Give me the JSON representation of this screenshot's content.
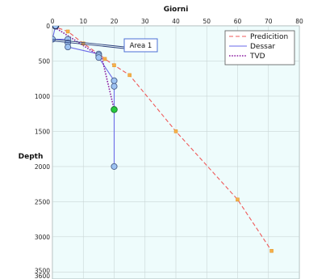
{
  "chart_data": {
    "type": "line",
    "xlabel": "Giorni",
    "ylabel": "Depth",
    "xlim": [
      0,
      80
    ],
    "ylim": [
      0,
      3600
    ],
    "y_inverted": true,
    "x_axis_position": "top",
    "x_ticks": [
      0,
      10,
      20,
      30,
      40,
      50,
      60,
      70,
      80
    ],
    "y_ticks": [
      0,
      500,
      1000,
      1500,
      2000,
      2500,
      3000,
      3500,
      3600
    ],
    "plot_background": "#eefcfc",
    "grid": true,
    "legend": {
      "placement": "top-right",
      "entries": [
        "Predicition",
        "Dessar",
        "TVD"
      ]
    },
    "series": [
      {
        "name": "Predicition",
        "color": "#ef5a5a",
        "line_style": "dashed",
        "marker": "square",
        "marker_fill": "#f6b04a",
        "points": [
          [
            0,
            0
          ],
          [
            5,
            80
          ],
          [
            10,
            250
          ],
          [
            15,
            400
          ],
          [
            17,
            470
          ],
          [
            20,
            560
          ],
          [
            25,
            700
          ],
          [
            40,
            1500
          ],
          [
            60,
            2470
          ],
          [
            71,
            3200
          ]
        ]
      },
      {
        "name": "Dessar",
        "color": "#6a6ae8",
        "line_style": "solid",
        "marker": "circle",
        "marker_fill": "#9dc3f2",
        "points": [
          [
            1,
            0
          ],
          [
            0,
            190
          ],
          [
            5,
            190
          ],
          [
            5,
            240
          ],
          [
            5,
            300
          ],
          [
            15,
            400
          ],
          [
            15,
            420
          ],
          [
            15,
            450
          ],
          [
            20,
            780
          ],
          [
            20,
            860
          ],
          [
            20,
            1190
          ],
          [
            20,
            2000
          ]
        ]
      },
      {
        "name": "TVD",
        "color": "#8a1aa0",
        "line_style": "dotted",
        "points": [
          [
            0,
            0
          ],
          [
            15,
            420
          ],
          [
            16,
            450
          ],
          [
            20,
            1190
          ]
        ]
      }
    ],
    "highlight_point": {
      "x": 20,
      "y": 1190,
      "color": "#27c93f"
    },
    "annotations": [
      {
        "text": "Area 1",
        "target_x": 0,
        "target_y": 190
      }
    ]
  }
}
